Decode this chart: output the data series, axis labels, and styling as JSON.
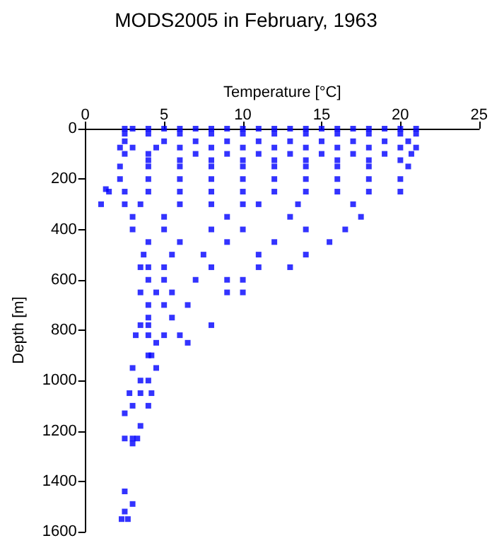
{
  "chart_data": {
    "type": "scatter",
    "title": "MODS2005 in February, 1963",
    "xlabel": "Temperature [°C]",
    "ylabel": "Depth [m]",
    "xlim": [
      0,
      25
    ],
    "xticks": [
      0,
      5,
      10,
      15,
      20,
      25
    ],
    "ylim": [
      1600,
      0
    ],
    "yticks": [
      0,
      200,
      400,
      600,
      800,
      1000,
      1200,
      1400,
      1600
    ],
    "grid": false,
    "marker": "square",
    "series": [
      {
        "color": "#0000ff",
        "x": [
          2.5,
          3,
          4,
          5,
          6,
          7,
          8,
          9,
          10,
          11,
          12,
          13,
          14,
          15,
          16,
          17,
          18,
          19,
          20,
          21,
          2.5,
          4,
          6,
          8,
          10,
          12,
          14,
          16,
          18,
          20,
          21,
          2.5,
          5,
          7,
          9,
          11,
          13,
          15,
          17,
          19,
          20.5,
          2.2,
          3,
          4.5,
          6,
          8,
          10,
          12,
          14,
          16,
          18,
          20,
          21,
          2.5,
          4,
          7,
          9,
          11,
          13,
          15,
          17,
          19,
          20.7,
          4,
          6,
          8,
          10,
          12,
          14,
          16,
          18,
          20,
          2.2,
          4,
          6,
          8,
          10,
          12,
          14,
          16,
          18,
          20.5,
          2.2,
          4,
          6,
          8,
          10,
          12,
          14,
          16,
          18,
          20,
          1.5,
          2.5,
          4,
          6,
          8,
          10,
          12,
          14,
          16,
          18,
          20,
          1.3,
          1,
          2.5,
          3.5,
          6,
          8,
          10,
          11,
          13.5,
          17,
          3,
          5,
          9,
          13,
          17.5,
          3,
          5,
          8,
          10,
          14,
          16.5,
          4,
          6,
          9,
          12,
          15.5,
          3.7,
          5.5,
          7.5,
          11,
          14,
          3.5,
          4,
          5,
          8,
          11,
          13,
          4,
          5,
          7,
          9,
          10,
          3.5,
          4.5,
          5.5,
          9,
          10,
          4,
          5,
          6.5,
          4,
          5.5,
          3.5,
          4,
          8,
          3.2,
          4,
          5,
          6,
          4.5,
          6.5,
          4,
          4.2,
          3,
          4.5,
          3.5,
          4,
          2.8,
          3.5,
          4.2,
          3,
          4,
          2.5,
          3.5,
          2.5,
          3,
          3.3,
          3,
          2.5,
          3,
          2.5,
          2.3,
          2.7
        ],
        "values": [
          0,
          0,
          0,
          0,
          0,
          0,
          0,
          0,
          0,
          0,
          0,
          0,
          0,
          0,
          0,
          0,
          0,
          0,
          0,
          0,
          20,
          20,
          20,
          20,
          20,
          20,
          20,
          20,
          20,
          20,
          20,
          50,
          50,
          50,
          50,
          50,
          50,
          50,
          50,
          50,
          50,
          75,
          75,
          75,
          75,
          75,
          75,
          75,
          75,
          75,
          75,
          75,
          75,
          100,
          100,
          100,
          100,
          100,
          100,
          100,
          100,
          100,
          100,
          125,
          125,
          125,
          125,
          125,
          125,
          125,
          125,
          125,
          150,
          150,
          150,
          150,
          150,
          150,
          150,
          150,
          150,
          150,
          200,
          200,
          200,
          200,
          200,
          200,
          200,
          200,
          200,
          200,
          250,
          250,
          250,
          250,
          250,
          250,
          250,
          250,
          250,
          250,
          250,
          240,
          300,
          300,
          300,
          300,
          300,
          300,
          300,
          300,
          300,
          350,
          350,
          350,
          350,
          350,
          400,
          400,
          400,
          400,
          400,
          400,
          450,
          450,
          450,
          450,
          450,
          500,
          500,
          500,
          500,
          500,
          550,
          550,
          550,
          550,
          550,
          550,
          600,
          600,
          600,
          600,
          600,
          650,
          650,
          650,
          650,
          650,
          700,
          700,
          700,
          750,
          750,
          780,
          780,
          780,
          820,
          820,
          820,
          820,
          850,
          850,
          900,
          900,
          950,
          950,
          1000,
          1000,
          1050,
          1050,
          1050,
          1100,
          1100,
          1130,
          1180,
          1230,
          1230,
          1230,
          1250,
          1440,
          1490,
          1520,
          1550,
          1550
        ]
      }
    ]
  }
}
